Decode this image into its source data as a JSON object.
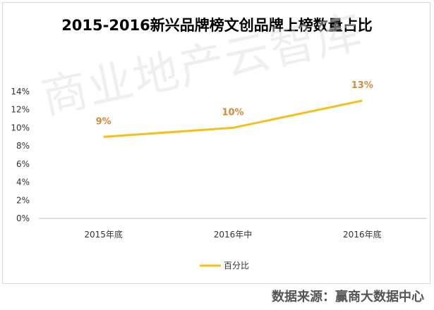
{
  "chart_data": {
    "type": "line",
    "title": "2015-2016新兴品牌榜文创品牌上榜数量占比",
    "categories": [
      "2015年底",
      "2016年中",
      "2016年底"
    ],
    "series": [
      {
        "name": "百分比",
        "values": [
          9,
          10,
          13
        ],
        "labels": [
          "9%",
          "10%",
          "13%"
        ]
      }
    ],
    "ylim": [
      0,
      14
    ],
    "yticks": [
      "0%",
      "2%",
      "4%",
      "6%",
      "8%",
      "10%",
      "12%",
      "14%"
    ],
    "grid": false,
    "legend_position": "bottom",
    "line_color": "#f5c01d",
    "label_color": "#d6893a"
  },
  "watermark": "商业地产云智库",
  "source": "数据来源：赢商大数据中心"
}
